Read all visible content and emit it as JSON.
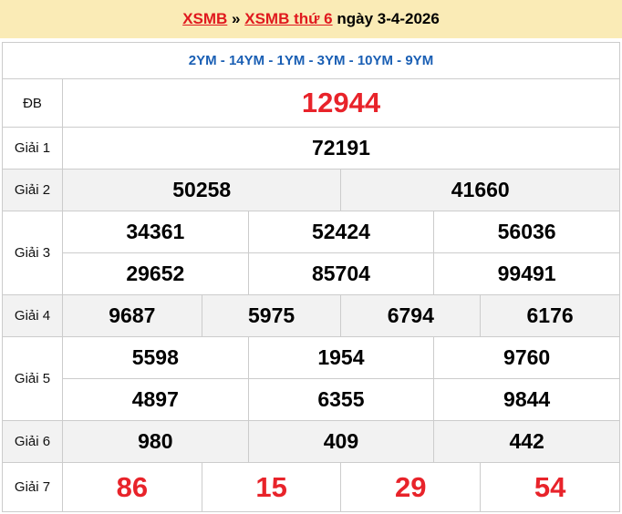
{
  "header": {
    "link1": "XSMB",
    "sep": "»",
    "link2": "XSMB thứ 6",
    "date_text": "ngày 3-4-2026"
  },
  "codes": "2YM - 14YM - 1YM - 3YM - 10YM - 9YM",
  "labels": {
    "db": "ĐB",
    "g1": "Giải 1",
    "g2": "Giải 2",
    "g3": "Giải 3",
    "g4": "Giải 4",
    "g5": "Giải 5",
    "g6": "Giải 6",
    "g7": "Giải 7"
  },
  "prizes": {
    "db": [
      "12944"
    ],
    "g1": [
      "72191"
    ],
    "g2": [
      "50258",
      "41660"
    ],
    "g3": [
      "34361",
      "52424",
      "56036",
      "29652",
      "85704",
      "99491"
    ],
    "g4": [
      "9687",
      "5975",
      "6794",
      "6176"
    ],
    "g5": [
      "5598",
      "1954",
      "9760",
      "4897",
      "6355",
      "9844"
    ],
    "g6": [
      "980",
      "409",
      "442"
    ],
    "g7": [
      "86",
      "15",
      "29",
      "54"
    ]
  },
  "colors": {
    "accent_red": "#e8232a",
    "code_blue": "#1a5fb4",
    "header_bg": "#faebb6"
  }
}
